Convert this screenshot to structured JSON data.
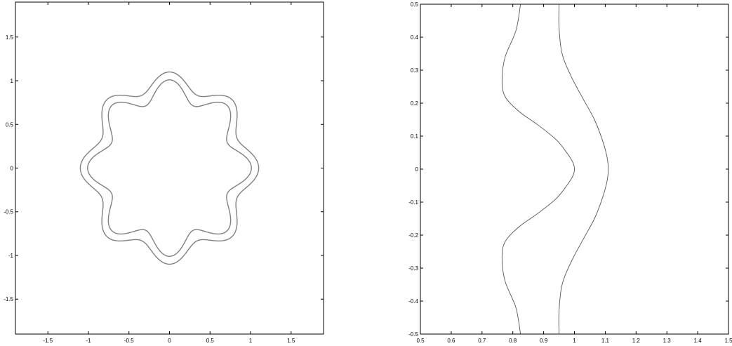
{
  "chart_data": [
    {
      "type": "line",
      "title": "",
      "xlabel": "",
      "ylabel": "",
      "xlim": [
        -1.9,
        1.9
      ],
      "ylim": [
        -1.9,
        1.9
      ],
      "xticks": [
        -1.5,
        -1,
        -0.5,
        0,
        0.5,
        1,
        1.5
      ],
      "xtick_labels": [
        "-1.5",
        "-1",
        "-0.5",
        "0",
        "0.5",
        "1",
        "1.5"
      ],
      "yticks": [
        -1.5,
        -1,
        -0.5,
        0,
        0.5,
        1,
        1.5
      ],
      "ytick_labels": [
        "-1.5",
        "-1",
        "-0.5",
        "0",
        "0.5",
        "1",
        "1.5"
      ],
      "grid": false,
      "line_color": "#808080",
      "series": [
        {
          "kind": "polar",
          "mean_radius": 1.0,
          "amplitude": 0.1,
          "lobes": 8,
          "phase": 0
        },
        {
          "kind": "polar",
          "mean_radius": 0.89,
          "amplitude": 0.12,
          "lobes": 8,
          "phase": 0
        }
      ]
    },
    {
      "type": "line",
      "title": "",
      "xlabel": "",
      "ylabel": "",
      "xlim": [
        0.5,
        1.5
      ],
      "ylim": [
        -0.5,
        0.5
      ],
      "xticks": [
        0.5,
        0.6,
        0.7,
        0.8,
        0.9,
        1,
        1.1,
        1.2,
        1.3,
        1.4,
        1.5
      ],
      "xtick_labels": [
        "0.5",
        "0.6",
        "0.7",
        "0.8",
        "0.9",
        "1",
        "1.1",
        "1.2",
        "1.3",
        "1.4",
        "1.5"
      ],
      "yticks": [
        -0.5,
        -0.4,
        -0.3,
        -0.2,
        -0.1,
        0,
        0.1,
        0.2,
        0.3,
        0.4,
        0.5
      ],
      "ytick_labels": [
        "-0.5",
        "-0.4",
        "-0.3",
        "-0.2",
        "-0.1",
        "0",
        "0.1",
        "0.2",
        "0.3",
        "0.4",
        "0.5"
      ],
      "grid": false,
      "line_color": "#555555",
      "series": [
        {
          "x": [
            0.825,
            0.81,
            0.775,
            0.765,
            0.775,
            0.82,
            0.88,
            0.94,
            0.975,
            0.995,
            1.0,
            0.995,
            0.975,
            0.94,
            0.88,
            0.82,
            0.775,
            0.765,
            0.775,
            0.81,
            0.825
          ],
          "y": [
            0.5,
            0.42,
            0.34,
            0.27,
            0.22,
            0.175,
            0.135,
            0.09,
            0.05,
            0.02,
            0.0,
            -0.02,
            -0.05,
            -0.09,
            -0.135,
            -0.175,
            -0.22,
            -0.27,
            -0.34,
            -0.42,
            -0.5
          ]
        },
        {
          "x": [
            0.95,
            0.95,
            0.96,
            0.99,
            1.03,
            1.065,
            1.09,
            1.105,
            1.11,
            1.105,
            1.09,
            1.065,
            1.03,
            0.99,
            0.96,
            0.95,
            0.95
          ],
          "y": [
            0.5,
            0.43,
            0.35,
            0.28,
            0.21,
            0.15,
            0.09,
            0.04,
            0.0,
            -0.04,
            -0.09,
            -0.15,
            -0.21,
            -0.28,
            -0.35,
            -0.43,
            -0.5
          ]
        }
      ]
    }
  ]
}
